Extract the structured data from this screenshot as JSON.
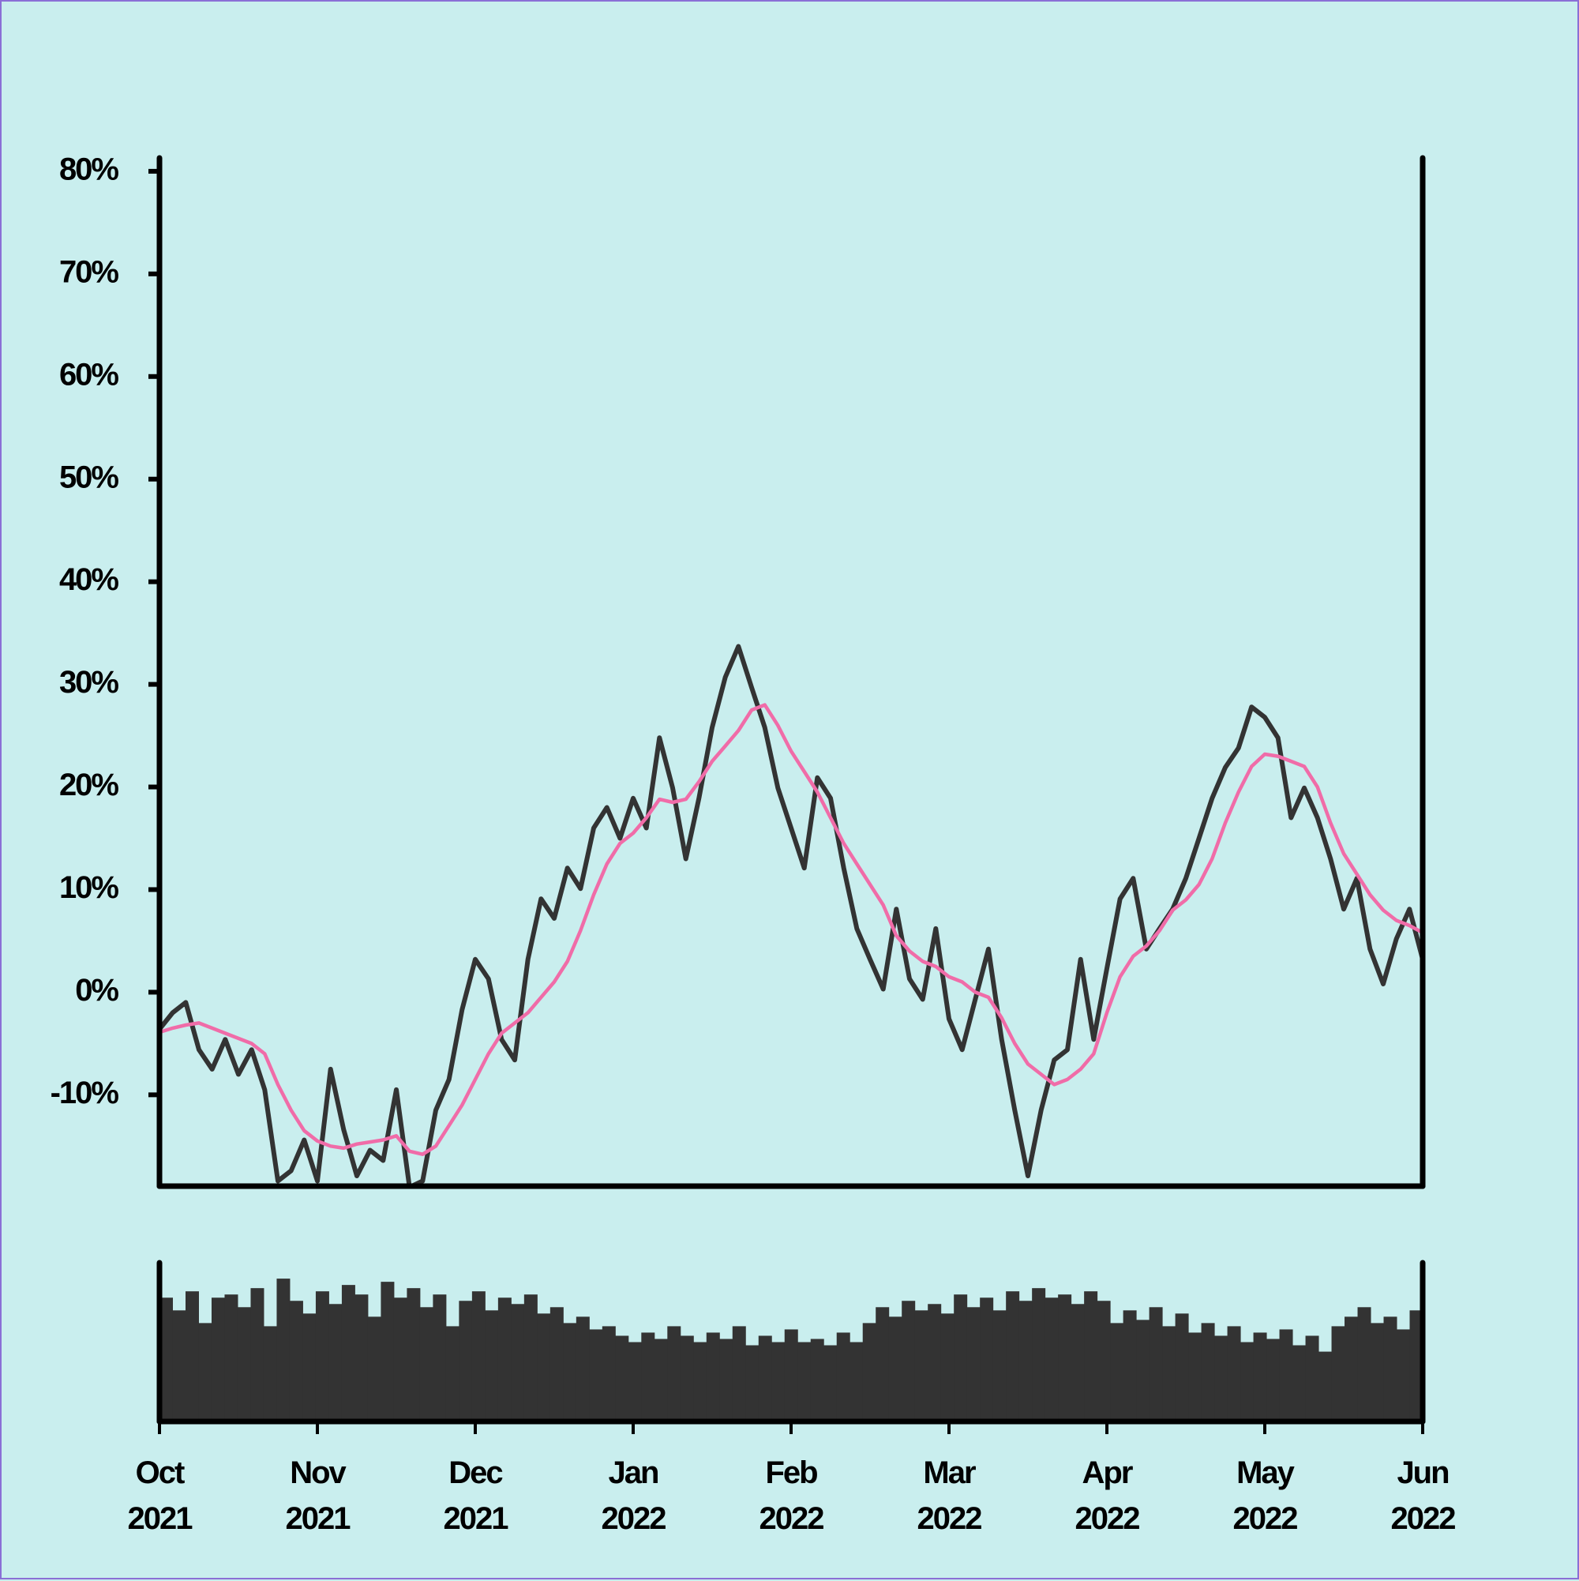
{
  "chart_data": [
    {
      "type": "line",
      "x": [
        0,
        1,
        2,
        3,
        4,
        5,
        6,
        7,
        8,
        9,
        10,
        11,
        12,
        13,
        14,
        15,
        16,
        17,
        18,
        19,
        20,
        21,
        22,
        23,
        24,
        25,
        26,
        27,
        28,
        29,
        30,
        31,
        32,
        33,
        34,
        35,
        36,
        37,
        38,
        39,
        40,
        41,
        42,
        43,
        44,
        45,
        46,
        47,
        48,
        49,
        50,
        51,
        52,
        53,
        54,
        55,
        56,
        57,
        58,
        59,
        60,
        61,
        62,
        63,
        64,
        65,
        66,
        67,
        68,
        69,
        70,
        71,
        72,
        73,
        74,
        75,
        76,
        77,
        78,
        79,
        80,
        81,
        82,
        83,
        84,
        85,
        86,
        87,
        88,
        89,
        90,
        91,
        92,
        93,
        94,
        95,
        96
      ],
      "series": [
        {
          "color": "#333333",
          "values": [
            -3.6,
            -2,
            -1,
            -5.6,
            -7.5,
            -4.6,
            -8,
            -5.6,
            -9.5,
            -18.4,
            -17.4,
            -14.4,
            -18.4,
            -7.5,
            -13.4,
            -17.9,
            -15.4,
            -16.4,
            -9.5,
            -19,
            -18.4,
            -11.5,
            -8.5,
            -1.7,
            3.2,
            1.3,
            -4.6,
            -6.6,
            3.2,
            9.1,
            7.2,
            12.1,
            10.1,
            16,
            18,
            15,
            18.9,
            16,
            24.8,
            19.9,
            13,
            18.9,
            25.8,
            30.7,
            33.7,
            29.7,
            25.8,
            19.9,
            16,
            12.1,
            20.9,
            18.9,
            12.1,
            6.2,
            3.2,
            0.3,
            8.1,
            1.3,
            -0.7,
            6.2,
            -2.6,
            -5.6,
            -0.7,
            4.2,
            -4.6,
            -11.5,
            -17.9,
            -11.5,
            -6.6,
            -5.6,
            3.2,
            -4.6,
            2.3,
            9.1,
            11.1,
            4.2,
            6.2,
            8.1,
            11.1,
            15,
            18.9,
            21.9,
            23.8,
            27.8,
            26.8,
            24.8,
            17,
            19.9,
            17,
            13,
            8.1,
            11.1,
            4.2,
            0.8,
            5.2,
            8.1,
            3.2
          ]
        },
        {
          "color": "#f06ca8",
          "values": [
            -3.9,
            -3.5,
            -3.2,
            -3,
            -3.5,
            -4,
            -4.5,
            -5,
            -6,
            -9,
            -11.5,
            -13.5,
            -14.5,
            -15,
            -15.2,
            -14.8,
            -14.6,
            -14.4,
            -14,
            -15.5,
            -15.8,
            -15,
            -13,
            -11,
            -8.5,
            -6,
            -4,
            -3,
            -2,
            -0.5,
            1,
            3,
            6,
            9.5,
            12.5,
            14.5,
            15.5,
            17,
            18.8,
            18.5,
            18.8,
            20.5,
            22.5,
            24,
            25.5,
            27.5,
            28,
            26,
            23.5,
            21.5,
            19.5,
            17,
            14.5,
            12.5,
            10.5,
            8.5,
            5.5,
            4,
            3,
            2.5,
            1.5,
            1,
            0,
            -0.5,
            -2.5,
            -5,
            -7,
            -8,
            -9,
            -8.5,
            -7.5,
            -6,
            -2,
            1.5,
            3.5,
            4.5,
            6,
            8,
            9,
            10.5,
            13,
            16.5,
            19.5,
            22,
            23.2,
            23,
            22.5,
            22,
            20,
            16.5,
            13.5,
            11.5,
            9.5,
            8,
            7,
            6.5,
            5.8
          ]
        }
      ],
      "xlim": [
        0,
        96
      ],
      "ylim": [
        -18.9,
        81.3
      ],
      "yticks": [
        {
          "value": -10,
          "label": "-10%"
        },
        {
          "value": 0,
          "label": "0%"
        },
        {
          "value": 10,
          "label": "10%"
        },
        {
          "value": 20,
          "label": "20%"
        },
        {
          "value": 30,
          "label": "30%"
        },
        {
          "value": 40,
          "label": "40%"
        },
        {
          "value": 50,
          "label": "50%"
        },
        {
          "value": 60,
          "label": "60%"
        },
        {
          "value": 70,
          "label": "70%"
        },
        {
          "value": 80,
          "label": "80%"
        }
      ]
    },
    {
      "type": "bar",
      "x": [
        0,
        1,
        2,
        3,
        4,
        5,
        6,
        7,
        8,
        9,
        10,
        11,
        12,
        13,
        14,
        15,
        16,
        17,
        18,
        19,
        20,
        21,
        22,
        23,
        24,
        25,
        26,
        27,
        28,
        29,
        30,
        31,
        32,
        33,
        34,
        35,
        36,
        37,
        38,
        39,
        40,
        41,
        42,
        43,
        44,
        45,
        46,
        47,
        48,
        49,
        50,
        51,
        52,
        53,
        54,
        55,
        56,
        57,
        58,
        59,
        60,
        61,
        62,
        63,
        64,
        65,
        66,
        67,
        68,
        69,
        70,
        71,
        72,
        73,
        74,
        75,
        76,
        77,
        78,
        79,
        80,
        81,
        82,
        83,
        84,
        85,
        86,
        87,
        88,
        89,
        90,
        91,
        92,
        93,
        94,
        95,
        96
      ],
      "values": [
        78,
        70,
        82,
        62,
        78,
        80,
        72,
        84,
        60,
        90,
        76,
        68,
        82,
        74,
        86,
        80,
        66,
        88,
        78,
        84,
        72,
        80,
        60,
        76,
        82,
        70,
        78,
        74,
        80,
        68,
        72,
        62,
        66,
        58,
        60,
        54,
        50,
        56,
        52,
        60,
        54,
        50,
        56,
        52,
        60,
        48,
        54,
        50,
        58,
        50,
        52,
        48,
        56,
        50,
        62,
        72,
        66,
        76,
        70,
        74,
        68,
        80,
        72,
        78,
        70,
        82,
        76,
        84,
        78,
        80,
        74,
        82,
        76,
        62,
        70,
        64,
        72,
        60,
        68,
        56,
        62,
        54,
        60,
        50,
        56,
        52,
        58,
        48,
        54,
        44,
        60,
        66,
        72,
        62,
        66,
        58,
        70
      ],
      "color": "#333333",
      "xlim": [
        0,
        96
      ],
      "ylim": [
        0,
        100
      ],
      "xticks": [
        {
          "value": 0,
          "label": "Oct 2021"
        },
        {
          "value": 12,
          "label": "Nov 2021"
        },
        {
          "value": 24,
          "label": "Dec 2021"
        },
        {
          "value": 36,
          "label": "Jan 2022"
        },
        {
          "value": 48,
          "label": "Feb 2022"
        },
        {
          "value": 60,
          "label": "Mar 2022"
        },
        {
          "value": 72,
          "label": "Apr 2022"
        },
        {
          "value": 84,
          "label": "May 2022"
        },
        {
          "value": 96,
          "label": "Jun 2022"
        }
      ]
    }
  ]
}
